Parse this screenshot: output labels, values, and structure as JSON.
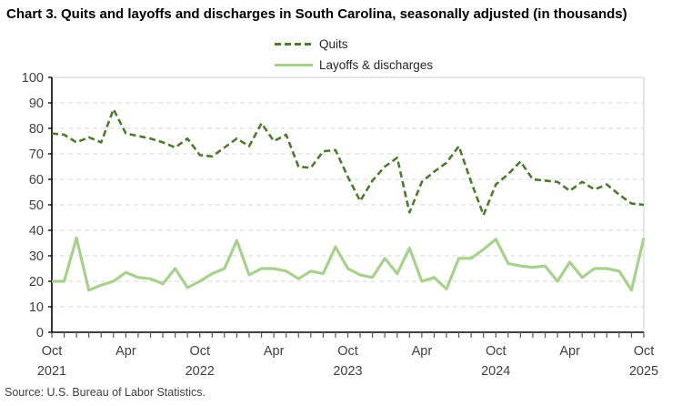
{
  "title": "Chart 3. Quits and layoffs and discharges in South Carolina, seasonally adjusted (in thousands)",
  "source": "Source: U.S. Bureau of Labor Statistics.",
  "colors": {
    "quits_line": "#4e7b30",
    "layoffs_line": "#a9d18e",
    "gridline": "#d9d9d9",
    "axis_line": "#000000",
    "axis_text": "#404040",
    "title_text": "#000000"
  },
  "legend": {
    "items": [
      {
        "label": "Quits",
        "style": "dashed"
      },
      {
        "label": "Layoffs & discharges",
        "style": "solid"
      }
    ]
  },
  "chart_data": {
    "type": "line",
    "title": "Chart 3. Quits and layoffs and discharges in South Carolina, seasonally adjusted (in thousands)",
    "xlabel": "",
    "ylabel": "",
    "ylim": [
      0,
      100
    ],
    "ytick_step": 10,
    "grid": "horizontal-dashed",
    "legend_position": "top-center",
    "categories": [
      "Oct 2021",
      "Nov 2021",
      "Dec 2021",
      "Jan 2022",
      "Feb 2022",
      "Mar 2022",
      "Apr 2022",
      "May 2022",
      "Jun 2022",
      "Jul 2022",
      "Aug 2022",
      "Sep 2022",
      "Oct 2022",
      "Nov 2022",
      "Dec 2022",
      "Jan 2023",
      "Feb 2023",
      "Mar 2023",
      "Apr 2023",
      "May 2023",
      "Jun 2023",
      "Jul 2023",
      "Aug 2023",
      "Sep 2023",
      "Oct 2023",
      "Nov 2023",
      "Dec 2023",
      "Jan 2024",
      "Feb 2024",
      "Mar 2024",
      "Apr 2024",
      "May 2024",
      "Jun 2024",
      "Jul 2024",
      "Aug 2024",
      "Sep 2024",
      "Oct 2024",
      "Nov 2024",
      "Dec 2024",
      "Jan 2025",
      "Feb 2025",
      "Mar 2025",
      "Apr 2025",
      "May 2025",
      "Jun 2025",
      "Jul 2025",
      "Aug 2025",
      "Sep 2025",
      "Oct 2025"
    ],
    "series": [
      {
        "name": "Quits",
        "style": "dashed",
        "color": "#4e7b30",
        "values": [
          78,
          77.5,
          74.5,
          76.5,
          74.5,
          87.5,
          78,
          77,
          76,
          74.5,
          72.5,
          76,
          69.5,
          69,
          72.5,
          76,
          73,
          82,
          75,
          77.5,
          65,
          64.5,
          71,
          71.5,
          61,
          51.5,
          59.5,
          65,
          68.5,
          47,
          59,
          63,
          66.5,
          73,
          59,
          46,
          58,
          62,
          67,
          60,
          59.5,
          59,
          55.5,
          59,
          56,
          58,
          54,
          50.5,
          50
        ]
      },
      {
        "name": "Layoffs & discharges",
        "style": "solid",
        "color": "#a9d18e",
        "values": [
          20,
          20,
          37,
          16.5,
          18.5,
          20,
          23.5,
          21.5,
          21,
          19,
          25,
          17.5,
          20,
          23,
          25,
          36,
          22.5,
          25,
          25,
          24,
          21,
          24,
          23,
          33.5,
          25,
          22.5,
          21.5,
          29,
          23,
          33,
          20,
          21.5,
          17,
          29,
          29,
          32.5,
          36.5,
          27,
          26,
          25.5,
          26,
          20,
          27.5,
          21.5,
          25,
          25,
          24,
          16.5,
          37
        ]
      }
    ],
    "xticks": [
      {
        "index": 0,
        "label": "Oct",
        "year": "2021"
      },
      {
        "index": 6,
        "label": "Apr",
        "year": ""
      },
      {
        "index": 12,
        "label": "Oct",
        "year": "2022"
      },
      {
        "index": 18,
        "label": "Apr",
        "year": ""
      },
      {
        "index": 24,
        "label": "Oct",
        "year": "2023"
      },
      {
        "index": 30,
        "label": "Apr",
        "year": ""
      },
      {
        "index": 36,
        "label": "Oct",
        "year": "2024"
      },
      {
        "index": 42,
        "label": "Apr",
        "year": ""
      },
      {
        "index": 48,
        "label": "Oct",
        "year": "2025"
      }
    ],
    "yticks": [
      0,
      10,
      20,
      30,
      40,
      50,
      60,
      70,
      80,
      90,
      100
    ]
  }
}
